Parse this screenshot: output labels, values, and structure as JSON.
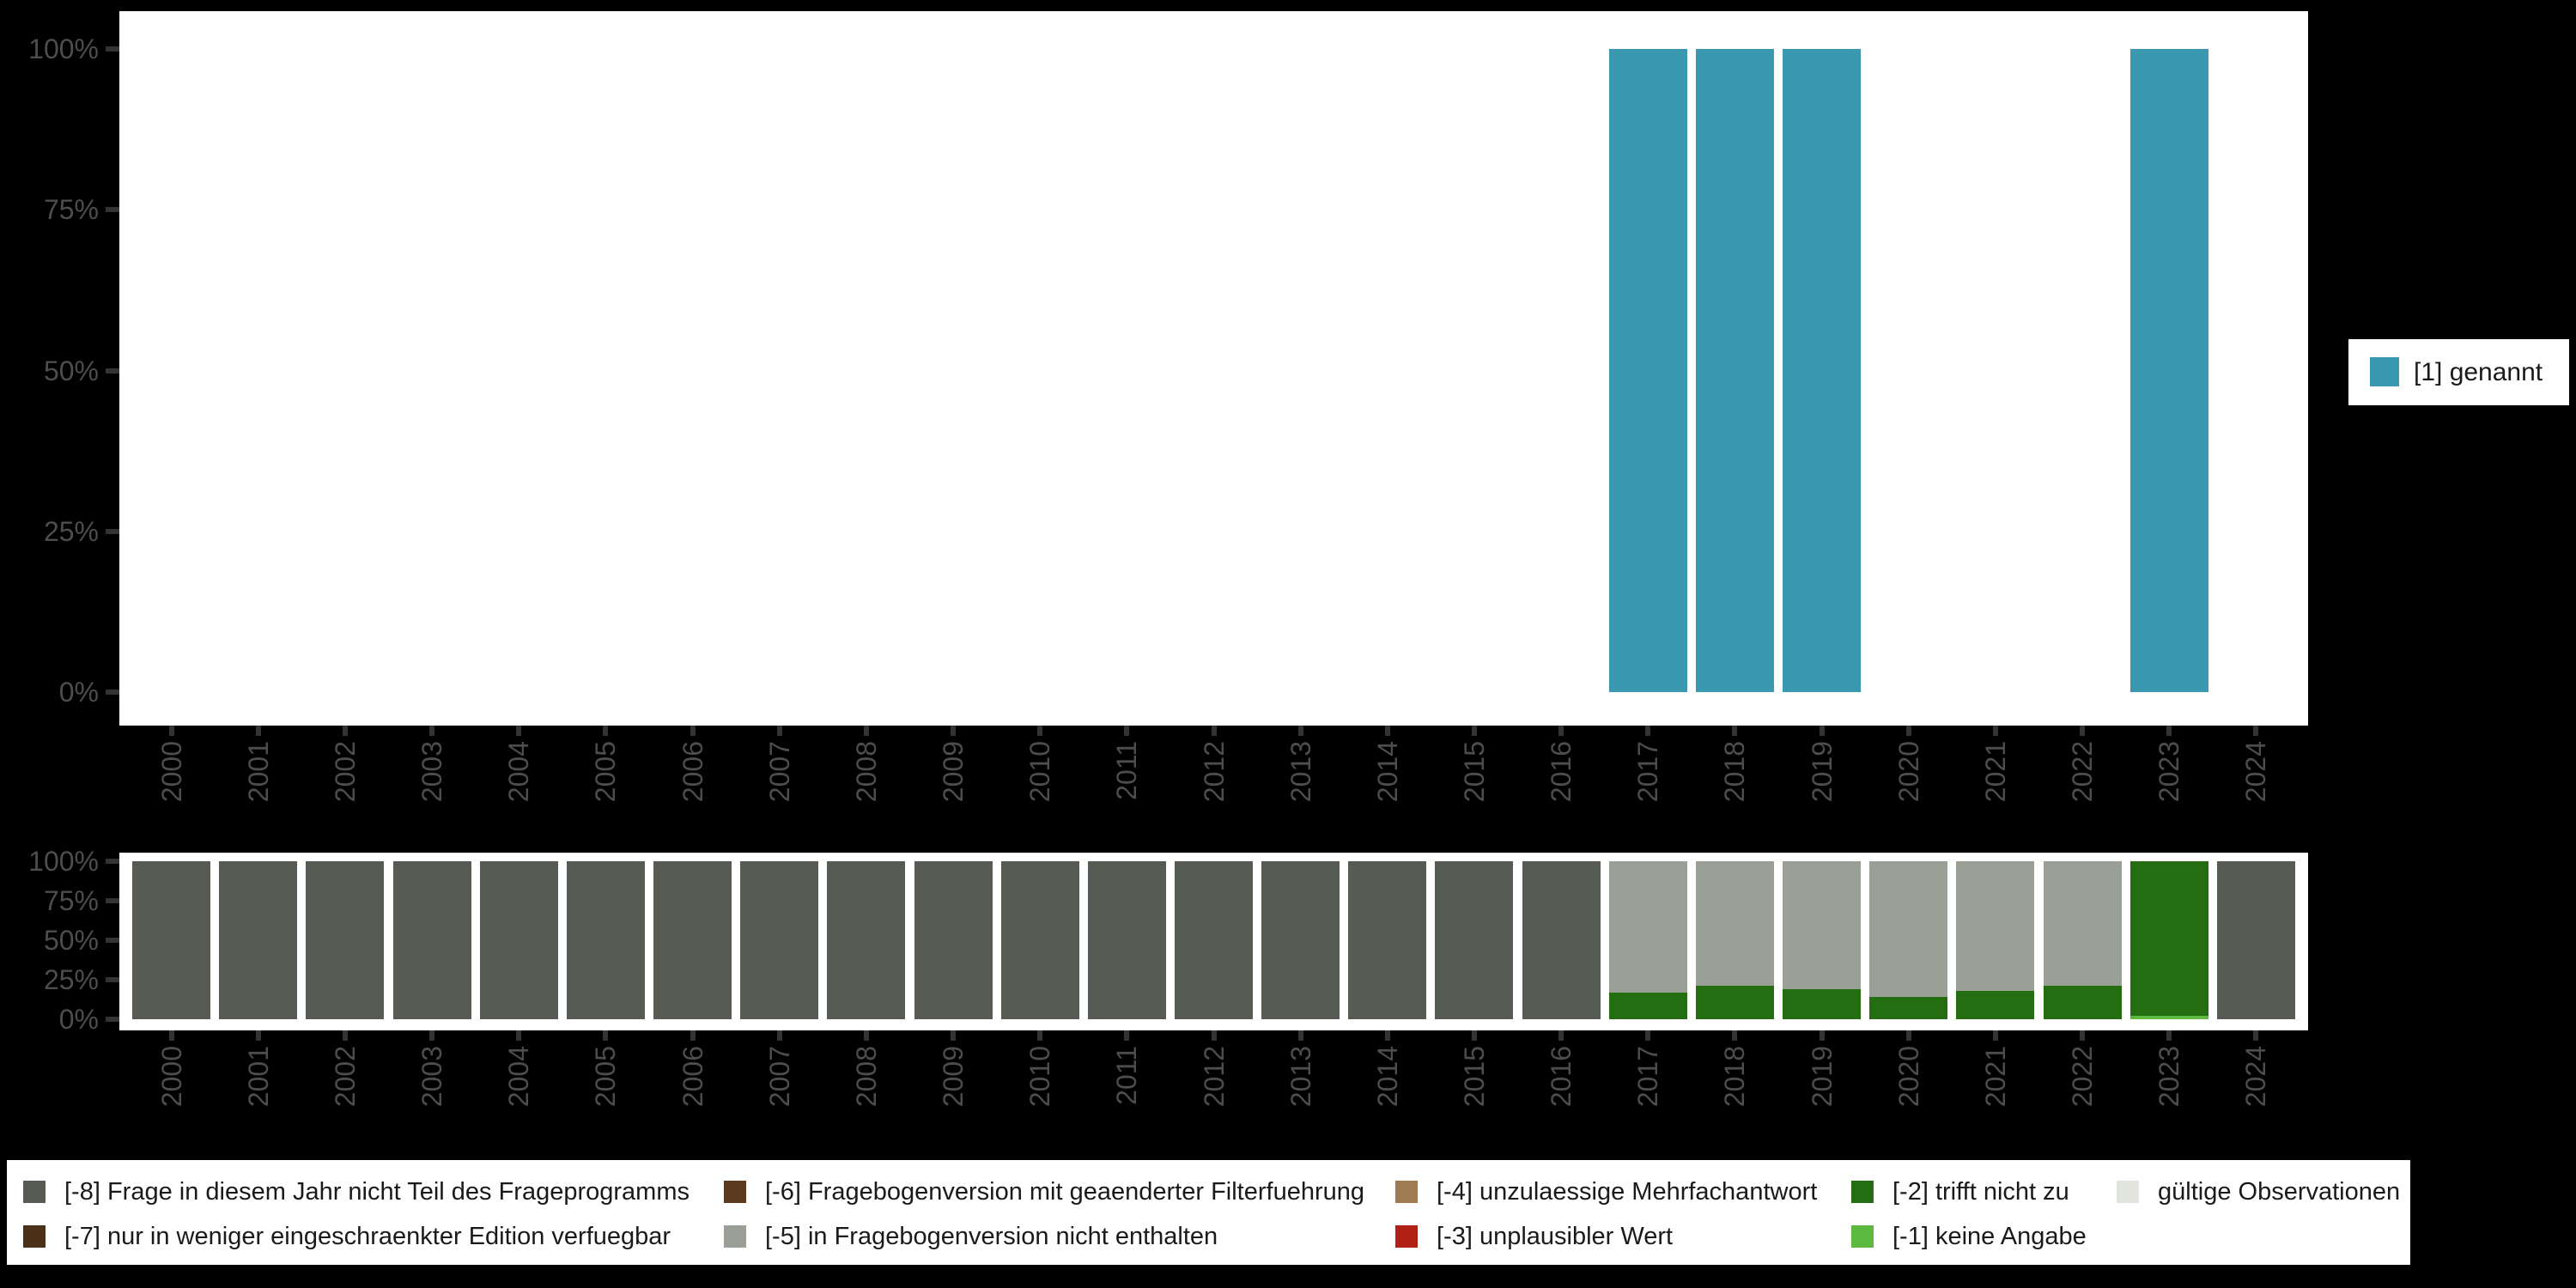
{
  "colors": {
    "page_bg": "#000000",
    "plot_bg": "#ffffff",
    "axis_text": "#4d4d4d",
    "tick": "#333333",
    "legend_text": "#1a1a1a",
    "genannt": "#3a98b1",
    "na_8": "#565c54",
    "na_7": "#4a3118",
    "na_6": "#5d3a1e",
    "na_5": "#9aa096",
    "na_4": "#9e7b52",
    "na_3": "#b02015",
    "na_2": "#246d10",
    "na_1": "#5dba3e",
    "valid": "#e2e5de"
  },
  "legend_right": {
    "label": "[1] genannt",
    "color_key": "genannt"
  },
  "legend_bottom": {
    "columns": [
      {
        "items": [
          {
            "label": "[-8] Frage in diesem Jahr nicht Teil des Frageprogramms",
            "color_key": "na_8"
          },
          {
            "label": "[-7] nur in weniger eingeschraenkter Edition verfuegbar",
            "color_key": "na_7"
          }
        ]
      },
      {
        "items": [
          {
            "label": "[-6] Fragebogenversion mit geaenderter Filterfuehrung",
            "color_key": "na_6"
          },
          {
            "label": "[-5] in Fragebogenversion nicht enthalten",
            "color_key": "na_5"
          }
        ]
      },
      {
        "items": [
          {
            "label": "[-4] unzulaessige Mehrfachantwort",
            "color_key": "na_4"
          },
          {
            "label": "[-3] unplausibler Wert",
            "color_key": "na_3"
          }
        ]
      },
      {
        "items": [
          {
            "label": "[-2] trifft nicht zu",
            "color_key": "na_2"
          },
          {
            "label": "[-1] keine Angabe",
            "color_key": "na_1"
          }
        ]
      },
      {
        "items": [
          {
            "label": "gültige Observationen",
            "color_key": "valid"
          }
        ]
      }
    ]
  },
  "chart_data": [
    {
      "type": "bar",
      "title": "",
      "xlabel": "",
      "ylabel": "",
      "ylim": [
        0,
        100
      ],
      "unit": "%",
      "grid": false,
      "legend_position": "right",
      "y_tick_labels": [
        "100%",
        "75%",
        "50%",
        "25%",
        "0%"
      ],
      "categories": [
        "2000",
        "2001",
        "2002",
        "2003",
        "2004",
        "2005",
        "2006",
        "2007",
        "2008",
        "2009",
        "2010",
        "2011",
        "2012",
        "2013",
        "2014",
        "2015",
        "2016",
        "2017",
        "2018",
        "2019",
        "2020",
        "2021",
        "2022",
        "2023",
        "2024"
      ],
      "series": [
        {
          "name": "[1] genannt",
          "color_key": "genannt",
          "values": [
            null,
            null,
            null,
            null,
            null,
            null,
            null,
            null,
            null,
            null,
            null,
            null,
            null,
            null,
            null,
            null,
            null,
            100,
            100,
            100,
            null,
            null,
            null,
            100,
            null
          ]
        }
      ]
    },
    {
      "type": "stacked_bar",
      "title": "",
      "xlabel": "",
      "ylabel": "",
      "ylim": [
        0,
        100
      ],
      "unit": "%",
      "grid": false,
      "legend_position": "bottom",
      "y_tick_labels": [
        "100%",
        "75%",
        "50%",
        "25%",
        "0%"
      ],
      "categories": [
        "2000",
        "2001",
        "2002",
        "2003",
        "2004",
        "2005",
        "2006",
        "2007",
        "2008",
        "2009",
        "2010",
        "2011",
        "2012",
        "2013",
        "2014",
        "2015",
        "2016",
        "2017",
        "2018",
        "2019",
        "2020",
        "2021",
        "2022",
        "2023",
        "2024"
      ],
      "series": [
        {
          "name": "[-1] keine Angabe",
          "color_key": "na_1",
          "values": [
            0,
            0,
            0,
            0,
            0,
            0,
            0,
            0,
            0,
            0,
            0,
            0,
            0,
            0,
            0,
            0,
            0,
            0,
            0,
            0,
            0,
            0,
            0,
            2,
            0
          ]
        },
        {
          "name": "[-2] trifft nicht zu",
          "color_key": "na_2",
          "values": [
            0,
            0,
            0,
            0,
            0,
            0,
            0,
            0,
            0,
            0,
            0,
            0,
            0,
            0,
            0,
            0,
            0,
            17,
            21,
            19,
            14,
            18,
            21,
            98,
            0
          ]
        },
        {
          "name": "[-5] in Fragebogenversion nicht enthalten",
          "color_key": "na_5",
          "values": [
            0,
            0,
            0,
            0,
            0,
            0,
            0,
            0,
            0,
            0,
            0,
            0,
            0,
            0,
            0,
            0,
            0,
            83,
            79,
            81,
            86,
            82,
            79,
            0,
            0
          ]
        },
        {
          "name": "[-8] Frage in diesem Jahr nicht Teil des Frageprogramms",
          "color_key": "na_8",
          "values": [
            100,
            100,
            100,
            100,
            100,
            100,
            100,
            100,
            100,
            100,
            100,
            100,
            100,
            100,
            100,
            100,
            100,
            0,
            0,
            0,
            0,
            0,
            0,
            0,
            100
          ]
        }
      ]
    }
  ]
}
